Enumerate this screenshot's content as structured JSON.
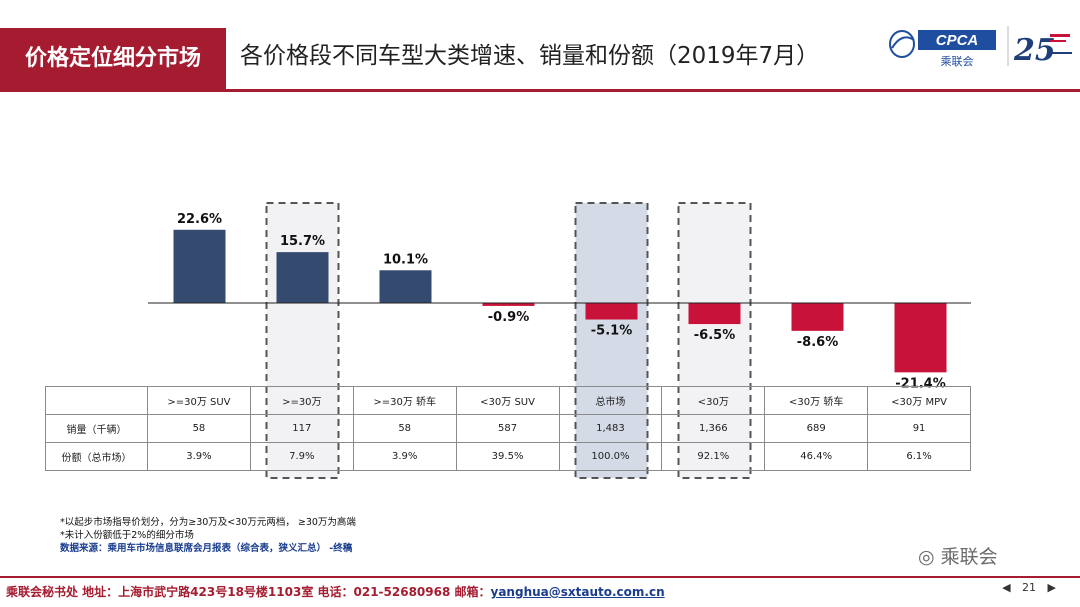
{
  "header": {
    "section_tag": "价格定位细分市场",
    "title": "各价格段不同车型大类增速、销量和份额（2019年7月）",
    "logo_cpca_text": "CPCA",
    "logo_cpca_cn": "乘联会",
    "logo_25_text": "25"
  },
  "chart_data": {
    "type": "bar",
    "categories": [
      ">=30万 SUV",
      ">=30万",
      ">=30万 轿车",
      "<30万 SUV",
      "总市场",
      "<30万",
      "<30万 轿车",
      "<30万 MPV"
    ],
    "values": [
      22.6,
      15.7,
      10.1,
      -0.9,
      -5.1,
      -6.5,
      -8.6,
      -21.4
    ],
    "value_labels": [
      "22.6%",
      "15.7%",
      "10.1%",
      "-0.9%",
      "-5.1%",
      "-6.5%",
      "-8.6%",
      "-21.4%"
    ],
    "highlighted": [
      1,
      4,
      5
    ],
    "shaded": [
      4
    ],
    "ylim": [
      -25,
      30
    ],
    "colors": {
      "positive": "#344a6e",
      "negative": "#c8123a",
      "highlight_fill": "#f2f2f5",
      "shaded_fill": "#d5dbe6"
    }
  },
  "table": {
    "header": [
      "",
      ">=30万 SUV",
      ">=30万",
      ">=30万 轿车",
      "<30万 SUV",
      "总市场",
      "<30万",
      "<30万 轿车",
      "<30万 MPV"
    ],
    "rows": [
      {
        "label": "销量（千辆）",
        "cells": [
          "58",
          "117",
          "58",
          "587",
          "1,483",
          "1,366",
          "689",
          "91"
        ]
      },
      {
        "label": "份额（总市场）",
        "cells": [
          "3.9%",
          "7.9%",
          "3.9%",
          "39.5%",
          "100.0%",
          "92.1%",
          "46.4%",
          "6.1%"
        ]
      }
    ]
  },
  "notes": {
    "line1": "*以起步市场指导价划分，分为≥30万及<30万元两档，  ≥30万为高端",
    "line2": "*未计入份额低于2%的细分市场",
    "source": "数据来源：乘用车市场信息联席会月报表（综合表，狭义汇总）  -终稿"
  },
  "wechat": "乘联会",
  "footer": {
    "text": "乘联会秘书处   地址：上海市武宁路423号18号楼1103室  电话：021-52680968   邮箱：",
    "email": "yanghua@sxtauto.com.cn"
  },
  "pager": {
    "prev": "◀",
    "page": "21",
    "next": "▶"
  }
}
